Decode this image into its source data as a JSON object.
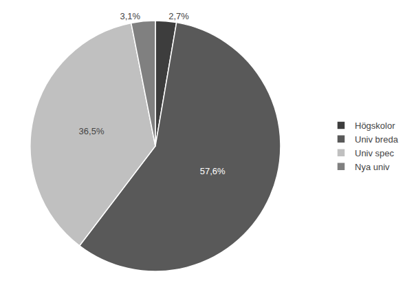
{
  "chart_data": {
    "type": "pie",
    "categories": [
      "Högskolor",
      "Univ breda",
      "Univ spec",
      "Nya univ"
    ],
    "values": [
      2.7,
      57.6,
      36.5,
      3.1
    ],
    "value_labels": [
      "2,7%",
      "57,6%",
      "36,5%",
      "3,1%"
    ],
    "colors": [
      "#3d3d3d",
      "#595959",
      "#c0c0c0",
      "#808080"
    ],
    "data_labels": true,
    "legend": "right"
  }
}
